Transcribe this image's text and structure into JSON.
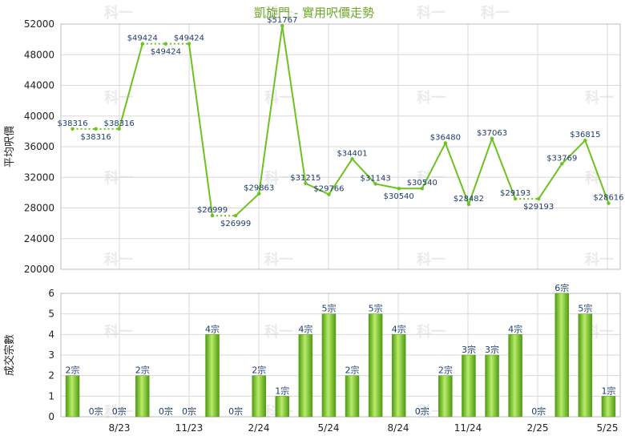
{
  "title": "凱旋門 - 實用呎價走勢",
  "watermark": "科一",
  "chart_data": [
    {
      "type": "line",
      "ylabel": "平均呎價",
      "ylim": [
        20000,
        52000
      ],
      "yticks": [
        20000,
        24000,
        28000,
        32000,
        36000,
        40000,
        44000,
        48000,
        52000
      ],
      "xticks": [
        "8/23",
        "11/23",
        "2/24",
        "5/24",
        "8/24",
        "11/24",
        "2/25",
        "5/25"
      ],
      "x": [
        0,
        1,
        2,
        3,
        4,
        5,
        6,
        7,
        8,
        9,
        10,
        11,
        12,
        13,
        14,
        15,
        16,
        17,
        18,
        19,
        20,
        21,
        22,
        23
      ],
      "values": [
        38316,
        38316,
        38316,
        49424,
        49424,
        49424,
        26999,
        26999,
        29863,
        51767,
        31215,
        29766,
        34401,
        31143,
        30540,
        30540,
        36480,
        28482,
        37063,
        29193,
        29193,
        33769,
        36815,
        28616
      ],
      "labels": [
        "$38316",
        "$38316",
        "$38316",
        "$49424",
        "$49424",
        "$49424",
        "$26999",
        "$26999",
        "$29863",
        "$51767",
        "$31215",
        "$29766",
        "$34401",
        "$31143",
        "$30540",
        "$30540",
        "$36480",
        "$28482",
        "$37063",
        "$29193",
        "$29193",
        "$33769",
        "$36815",
        "$28616"
      ],
      "label_below": [
        false,
        true,
        false,
        false,
        true,
        false,
        false,
        true,
        false,
        false,
        false,
        false,
        false,
        false,
        true,
        false,
        false,
        false,
        false,
        false,
        true,
        false,
        false,
        false
      ],
      "dotted_segments": [
        0,
        1,
        3,
        4,
        6,
        19
      ],
      "color": "#6cc21e"
    },
    {
      "type": "bar",
      "ylabel": "成交宗數",
      "ylim": [
        0,
        6
      ],
      "yticks": [
        0,
        1,
        2,
        3,
        4,
        5,
        6
      ],
      "xticks": [
        "8/23",
        "11/23",
        "2/24",
        "5/24",
        "8/24",
        "11/24",
        "2/25",
        "5/25"
      ],
      "x": [
        0,
        1,
        2,
        3,
        4,
        5,
        6,
        7,
        8,
        9,
        10,
        11,
        12,
        13,
        14,
        15,
        16,
        17,
        18,
        19,
        20,
        21,
        22,
        23
      ],
      "values": [
        2,
        0,
        0,
        2,
        0,
        0,
        4,
        0,
        2,
        1,
        4,
        5,
        2,
        5,
        4,
        0,
        2,
        3,
        3,
        4,
        0,
        6,
        5,
        1
      ],
      "labels": [
        "2宗",
        "0宗",
        "0宗",
        "2宗",
        "0宗",
        "0宗",
        "4宗",
        "0宗",
        "2宗",
        "1宗",
        "4宗",
        "5宗",
        "2宗",
        "5宗",
        "4宗",
        "0宗",
        "2宗",
        "3宗",
        "3宗",
        "4宗",
        "0宗",
        "6宗",
        "5宗",
        "1宗"
      ],
      "color": "#6cc21e"
    }
  ]
}
